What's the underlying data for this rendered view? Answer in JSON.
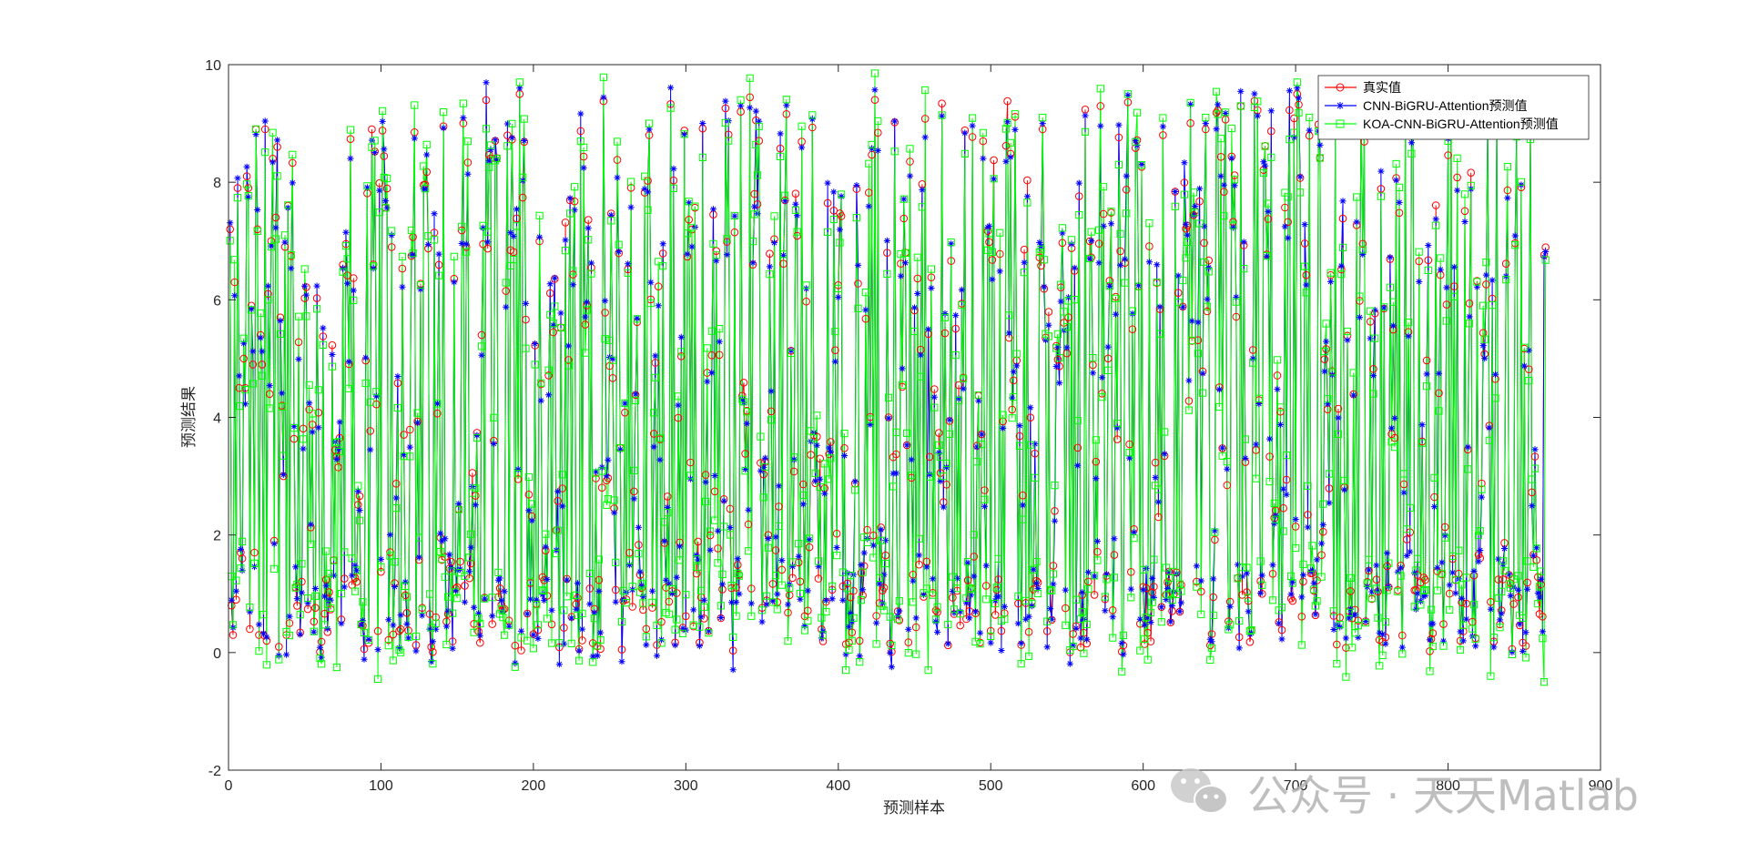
{
  "chart_data": {
    "type": "line",
    "title": "",
    "xlabel": "预测样本",
    "ylabel": "预测结果",
    "xlim": [
      0,
      900
    ],
    "ylim": [
      -2,
      10
    ],
    "xticks": [
      "0",
      "100",
      "200",
      "300",
      "400",
      "500",
      "600",
      "700",
      "800",
      "900"
    ],
    "yticks": [
      "-2",
      "0",
      "2",
      "4",
      "6",
      "8",
      "10"
    ],
    "grid": false,
    "legend_position": "top-right",
    "series": [
      {
        "name": "真实值",
        "color": "#ff0000",
        "marker": "circle"
      },
      {
        "name": "CNN-BiGRU-Attention预测值",
        "color": "#0000ff",
        "marker": "asterisk"
      },
      {
        "name": "KOA-CNN-BiGRU-Attention预测值",
        "color": "#00ff00",
        "marker": "square"
      }
    ],
    "n_points": 864,
    "y_true_sample_first_40": [
      7.2,
      0.8,
      0.3,
      6.3,
      0.9,
      7.9,
      4.5,
      1.7,
      1.6,
      5.0,
      4.5,
      8.1,
      7.9,
      0.4,
      5.9,
      4.9,
      1.7,
      8.9,
      7.2,
      0.3,
      5.4,
      4.9,
      0.3,
      8.9,
      0.2,
      6.1,
      4.4,
      7.0,
      8.4,
      1.9,
      7.4,
      8.6,
      0.1,
      5.7,
      4.2,
      3.0,
      6.9,
      0.3,
      7.6,
      0.5
    ],
    "watermark": "公众号 · 天天Matlab"
  }
}
